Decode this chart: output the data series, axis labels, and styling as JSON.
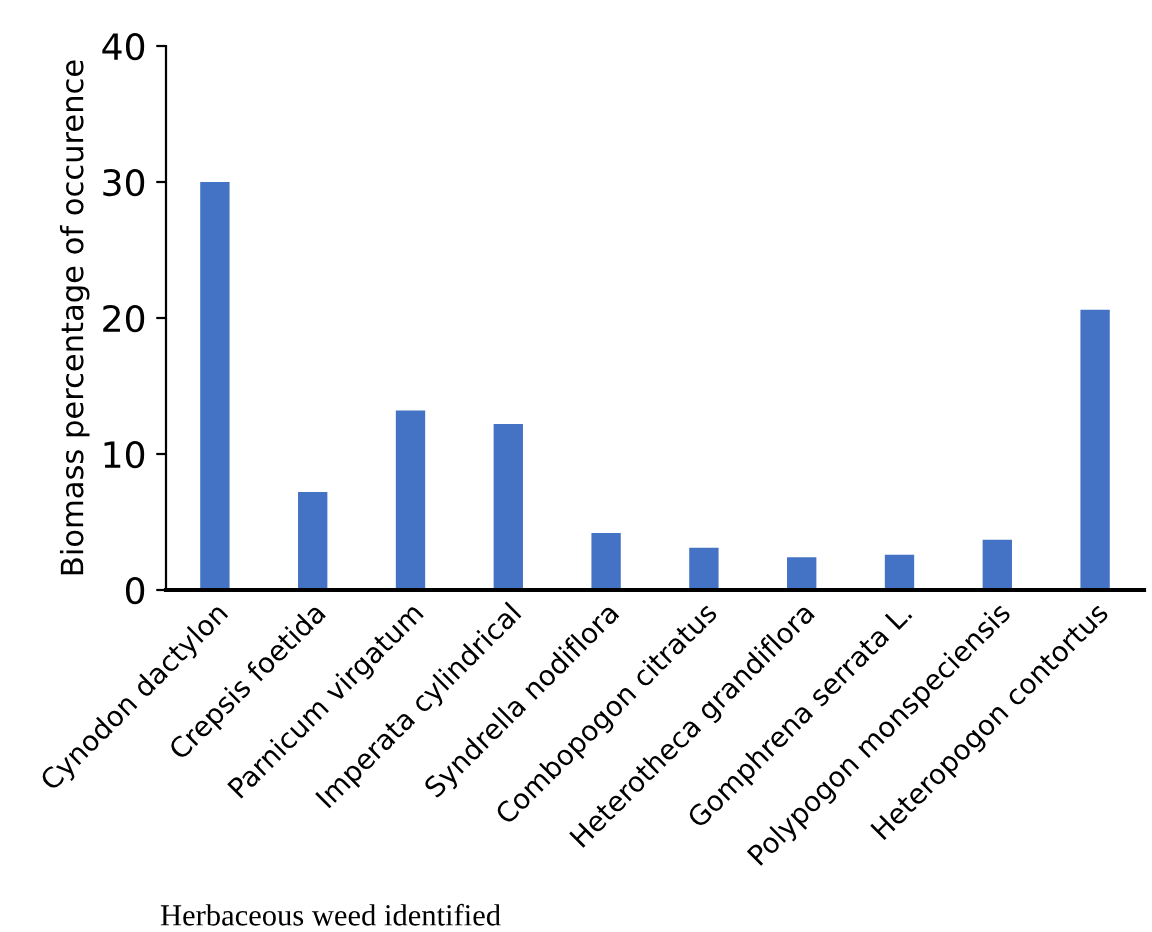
{
  "chart_data": {
    "type": "bar",
    "xlabel": "Herbaceous weed identified",
    "ylabel": "Biomass percentage of occurence",
    "categories": [
      "Cynodon dactylon",
      "Crepsis foetida",
      "Parnicum virgatum",
      "Imperata cylindrical",
      "Syndrella nodiflora",
      "Combopogon citratus",
      "Heterotheca grandiflora",
      "Gomphrena serrata L.",
      "Polypogon monspeciensis",
      "Heteropogon contortus"
    ],
    "values": [
      30.0,
      7.2,
      13.2,
      12.2,
      4.2,
      3.1,
      2.4,
      2.6,
      3.7,
      20.6
    ],
    "color": "#4472c4",
    "ylim": [
      0,
      40
    ],
    "yticks": [
      0,
      10,
      20,
      30,
      40
    ],
    "grid": false,
    "legend": false
  }
}
